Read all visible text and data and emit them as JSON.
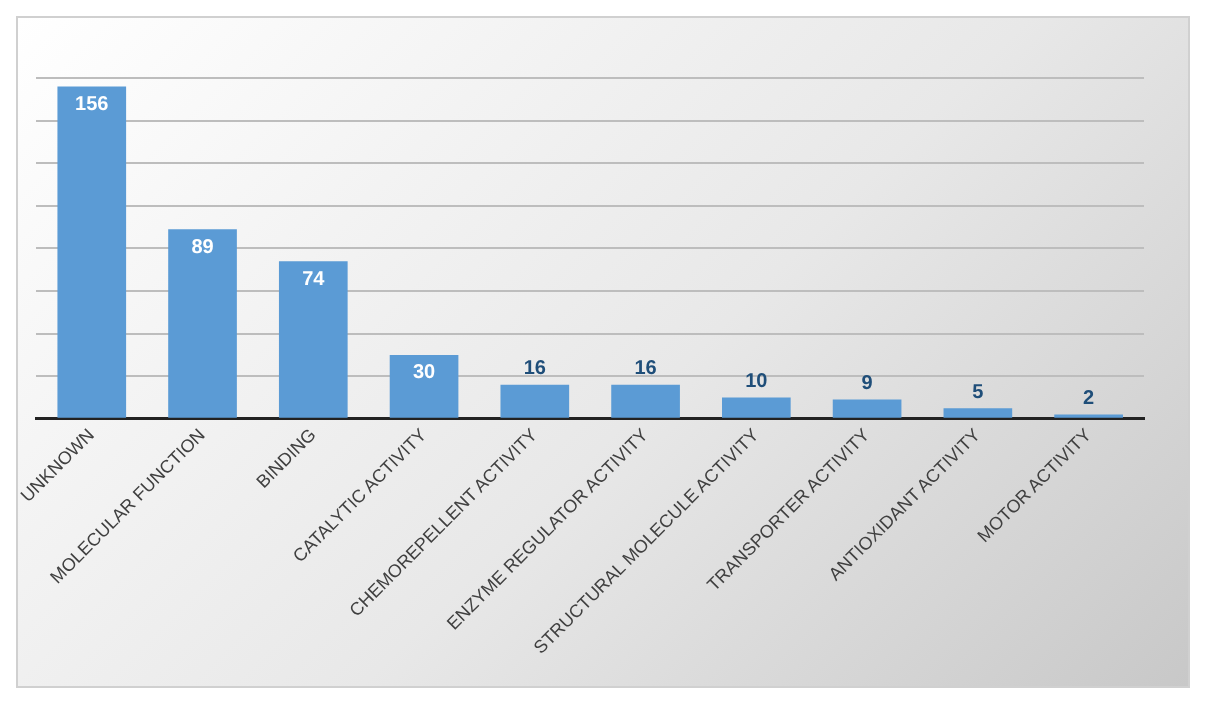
{
  "chart_data": {
    "type": "bar",
    "categories": [
      "UNKNOWN",
      "MOLECULAR FUNCTION",
      "BINDING",
      "CATALYTIC ACTIVITY",
      "CHEMOREPELLENT ACTIVITY",
      "ENZYME REGULATOR ACTIVITY",
      "STRUCTURAL MOLECULE ACTIVITY",
      "TRANSPORTER ACTIVITY",
      "ANTIOXIDANT ACTIVITY",
      "MOTOR ACTIVITY"
    ],
    "values": [
      156,
      89,
      74,
      30,
      16,
      16,
      10,
      9,
      5,
      2
    ],
    "color": "#5b9bd5",
    "ylim": [
      0,
      160
    ],
    "yticks": [
      {
        "value": 0,
        "label": null
      },
      {
        "value": 20,
        "label": null
      },
      {
        "value": 40,
        "label": null
      },
      {
        "value": 60,
        "label": null
      },
      {
        "value": 80,
        "label": null
      },
      {
        "value": 100,
        "label": null
      },
      {
        "value": 120,
        "label": null
      },
      {
        "value": 140,
        "label": null
      },
      {
        "value": 160,
        "label": null
      }
    ],
    "tick_labels": "x",
    "grid": "y",
    "data_labels": true,
    "legend": false
  }
}
